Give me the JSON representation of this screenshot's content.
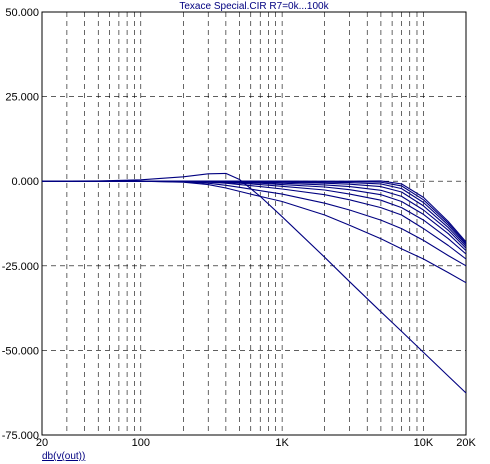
{
  "chart_data": {
    "type": "line",
    "title": "Texace Special.CIR R7=0k...100k",
    "xlabel": "db(v(out))",
    "ylabel": "",
    "x_scale": "log",
    "xlim": [
      20,
      20000
    ],
    "ylim": [
      -75,
      50
    ],
    "grid": true,
    "x_tick_labels": [
      "20",
      "100",
      "1K",
      "10K",
      "20K"
    ],
    "x_tick_values": [
      20,
      100,
      1000,
      10000,
      20000
    ],
    "y_tick_labels": [
      "50.000",
      "25.000",
      "0.000",
      "-25.000",
      "-50.000",
      "-75.000"
    ],
    "y_tick_values": [
      50,
      25,
      0,
      -25,
      -50,
      -75
    ],
    "line_color": "#000080",
    "x": [
      20,
      50,
      100,
      200,
      300,
      400,
      500,
      700,
      1000,
      2000,
      3000,
      5000,
      7000,
      10000,
      15000,
      20000
    ],
    "series": [
      {
        "values": [
          0,
          0.1,
          0.4,
          1.3,
          2.2,
          2.3,
          0.5,
          -4.5,
          -10.5,
          -22.5,
          -29.7,
          -38.6,
          -44.4,
          -50.6,
          -57.6,
          -62.6
        ]
      },
      {
        "values": [
          0,
          0,
          0,
          -0.3,
          -1,
          -2,
          -3,
          -4.5,
          -6,
          -10,
          -13,
          -17,
          -20,
          -23,
          -27,
          -30
        ]
      },
      {
        "values": [
          0,
          0,
          0,
          -0.2,
          -0.6,
          -1.2,
          -1.8,
          -2.8,
          -3.8,
          -6.5,
          -8.5,
          -11.5,
          -14,
          -17.5,
          -22,
          -25
        ]
      },
      {
        "values": [
          0,
          0,
          0,
          -0.1,
          -0.3,
          -0.6,
          -1,
          -1.6,
          -2.3,
          -4,
          -5.5,
          -7.8,
          -10,
          -14,
          -19,
          -23
        ]
      },
      {
        "values": [
          0,
          0,
          0,
          0,
          -0.2,
          -0.4,
          -0.6,
          -1,
          -1.5,
          -2.6,
          -3.8,
          -5.6,
          -7.8,
          -11.5,
          -17,
          -21.5
        ]
      },
      {
        "values": [
          0,
          0,
          0,
          0,
          -0.1,
          -0.2,
          -0.4,
          -0.6,
          -1,
          -1.7,
          -2.5,
          -4,
          -6,
          -9.8,
          -15.5,
          -20.5
        ]
      },
      {
        "values": [
          0,
          0,
          0,
          0,
          0,
          -0.1,
          -0.2,
          -0.4,
          -0.6,
          -1.1,
          -1.6,
          -2.7,
          -4.5,
          -8.5,
          -14.5,
          -19.8
        ]
      },
      {
        "values": [
          0,
          0,
          0,
          0,
          0,
          0,
          -0.1,
          -0.2,
          -0.3,
          -0.6,
          -0.9,
          -1.6,
          -3.2,
          -7.3,
          -13.7,
          -19.2
        ]
      },
      {
        "values": [
          0,
          0,
          0,
          0,
          0,
          0,
          0,
          -0.1,
          -0.1,
          -0.3,
          -0.4,
          -0.8,
          -2.2,
          -6.3,
          -13,
          -18.7
        ]
      },
      {
        "values": [
          0,
          0,
          0,
          0,
          0,
          0,
          0,
          0,
          0,
          -0.1,
          -0.1,
          -0.3,
          -1.4,
          -5.5,
          -12.4,
          -18.3
        ]
      },
      {
        "values": [
          0,
          0,
          0,
          0,
          0,
          0,
          0,
          0,
          0,
          0,
          0,
          0.1,
          -0.8,
          -4.8,
          -11.9,
          -17.9
        ]
      }
    ]
  }
}
